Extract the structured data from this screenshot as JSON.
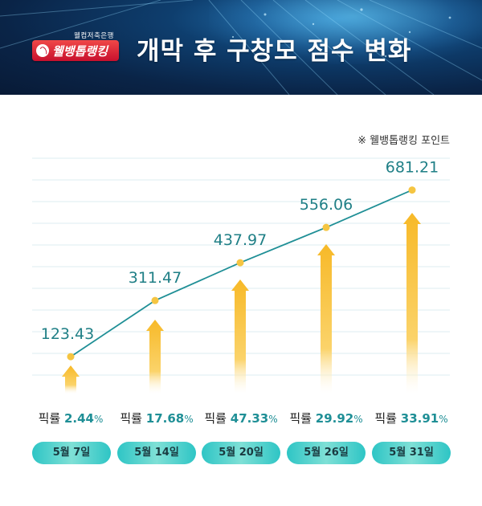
{
  "header": {
    "logo_sub": "웰컴저축은행",
    "logo_text": "웰뱅톱랭킹",
    "title": "개막 후 구창모 점수 변화"
  },
  "note": "※ 웰뱅톱랭킹 포인트",
  "rates": [
    {
      "label": "픽률",
      "value": "2.44",
      "unit": "%"
    },
    {
      "label": "픽률",
      "value": "17.68",
      "unit": "%"
    },
    {
      "label": "픽률",
      "value": "47.33",
      "unit": "%"
    },
    {
      "label": "픽률",
      "value": "29.92",
      "unit": "%"
    },
    {
      "label": "픽률",
      "value": "33.91",
      "unit": "%"
    }
  ],
  "colors": {
    "line": "#1f8f96",
    "point": "#f5c542",
    "arrow": "#f7b928",
    "label": "#1f7f86",
    "pill": "#2ec5c5"
  },
  "chart_data": {
    "type": "line",
    "categories": [
      "5월 7일",
      "5월 14일",
      "5월 20일",
      "5월 26일",
      "5월 31일"
    ],
    "series": [
      {
        "name": "웰뱅톱랭킹 포인트",
        "values": [
          123.43,
          311.47,
          437.97,
          556.06,
          681.21
        ],
        "labels": [
          "123.43",
          "311.47",
          "437.97",
          "556.06",
          "681.21"
        ]
      }
    ],
    "pick_rate": [
      2.44,
      17.68,
      47.33,
      29.92,
      33.91
    ],
    "ylim": [
      0,
      800
    ],
    "grid": true
  }
}
